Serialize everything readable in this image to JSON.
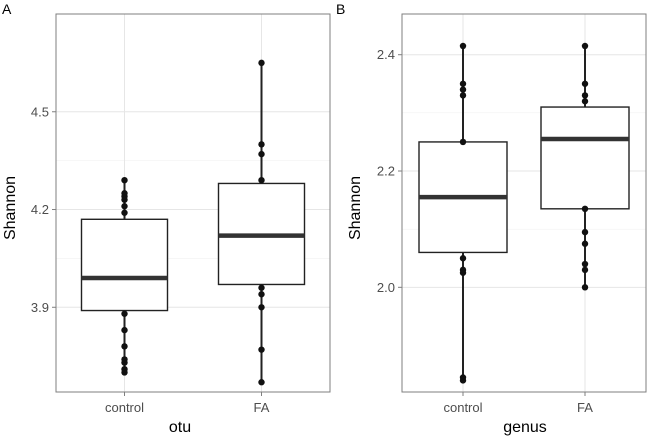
{
  "chart_data": [
    {
      "type": "boxplot",
      "panel_label": "A",
      "xlabel": "otu",
      "ylabel": "Shannon",
      "categories": [
        "control",
        "FA"
      ],
      "ylim": [
        3.64,
        4.8
      ],
      "yticks": [
        3.9,
        4.2,
        4.5
      ],
      "ytick_labels": [
        "3.9",
        "4.2",
        "4.5"
      ],
      "grid": true,
      "boxes": [
        {
          "category": "control",
          "min": 3.7,
          "q1": 3.89,
          "median": 3.99,
          "q3": 4.17,
          "max": 4.29,
          "points": [
            3.7,
            3.71,
            3.73,
            3.74,
            3.78,
            3.83,
            3.88,
            4.19,
            4.21,
            4.23,
            4.24,
            4.25,
            4.29
          ]
        },
        {
          "category": "FA",
          "min": 3.67,
          "q1": 3.97,
          "median": 4.12,
          "q3": 4.28,
          "max": 4.65,
          "points": [
            3.67,
            3.77,
            3.9,
            3.94,
            3.96,
            4.29,
            4.37,
            4.4,
            4.65
          ]
        }
      ]
    },
    {
      "type": "boxplot",
      "panel_label": "B",
      "xlabel": "genus",
      "ylabel": "Shannon",
      "categories": [
        "control",
        "FA"
      ],
      "ylim": [
        1.82,
        2.47
      ],
      "yticks": [
        2.0,
        2.2,
        2.4
      ],
      "ytick_labels": [
        "2.0",
        "2.2",
        "2.4"
      ],
      "grid": true,
      "boxes": [
        {
          "category": "control",
          "min": 1.84,
          "q1": 2.06,
          "median": 2.155,
          "q3": 2.25,
          "max": 2.415,
          "points": [
            1.84,
            1.845,
            2.025,
            2.03,
            2.05,
            2.25,
            2.33,
            2.34,
            2.35,
            2.415
          ]
        },
        {
          "category": "FA",
          "min": 2.0,
          "q1": 2.135,
          "median": 2.255,
          "q3": 2.31,
          "max": 2.415,
          "points": [
            2.0,
            2.03,
            2.04,
            2.075,
            2.095,
            2.135,
            2.32,
            2.33,
            2.35,
            2.415
          ]
        }
      ]
    }
  ]
}
